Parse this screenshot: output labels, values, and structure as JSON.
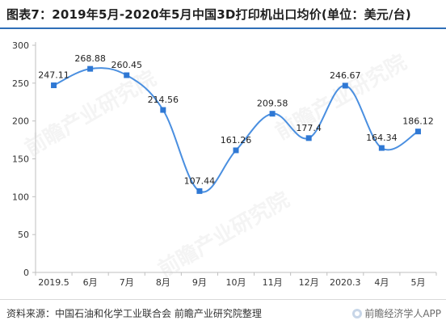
{
  "title": "图表7：2019年5月-2020年5月中国3D打印机出口均价(单位：美元/台)",
  "source": "资料来源：中国石油和化学工业联合会 前瞻产业研究院整理",
  "brand": "前瞻经济学人APP",
  "watermark_text": "前瞻产业研究院",
  "colors": {
    "line": "#4a8fe0",
    "marker": "#2f78d4",
    "axis": "#bfbfbf",
    "grid": "#e4e4e4",
    "title_rule": "#2f6fb8"
  },
  "chart_data": {
    "type": "line",
    "categories": [
      "2019.5",
      "6月",
      "7月",
      "8月",
      "9月",
      "10月",
      "11月",
      "12月",
      "2020.3",
      "4月",
      "5月"
    ],
    "values": [
      247.11,
      268.88,
      260.45,
      214.56,
      107.44,
      161.26,
      209.58,
      177.4,
      246.67,
      164.34,
      186.12
    ],
    "value_labels": [
      "247.11",
      "268.88",
      "260.45",
      "214.56",
      "107.44",
      "161.26",
      "209.58",
      "177.4",
      "246.67",
      "164.34",
      "186.12"
    ],
    "ylim": [
      0,
      300
    ],
    "yticks": [
      0,
      50,
      100,
      150,
      200,
      250,
      300
    ],
    "grid": false,
    "smooth": true,
    "marker": "square"
  }
}
